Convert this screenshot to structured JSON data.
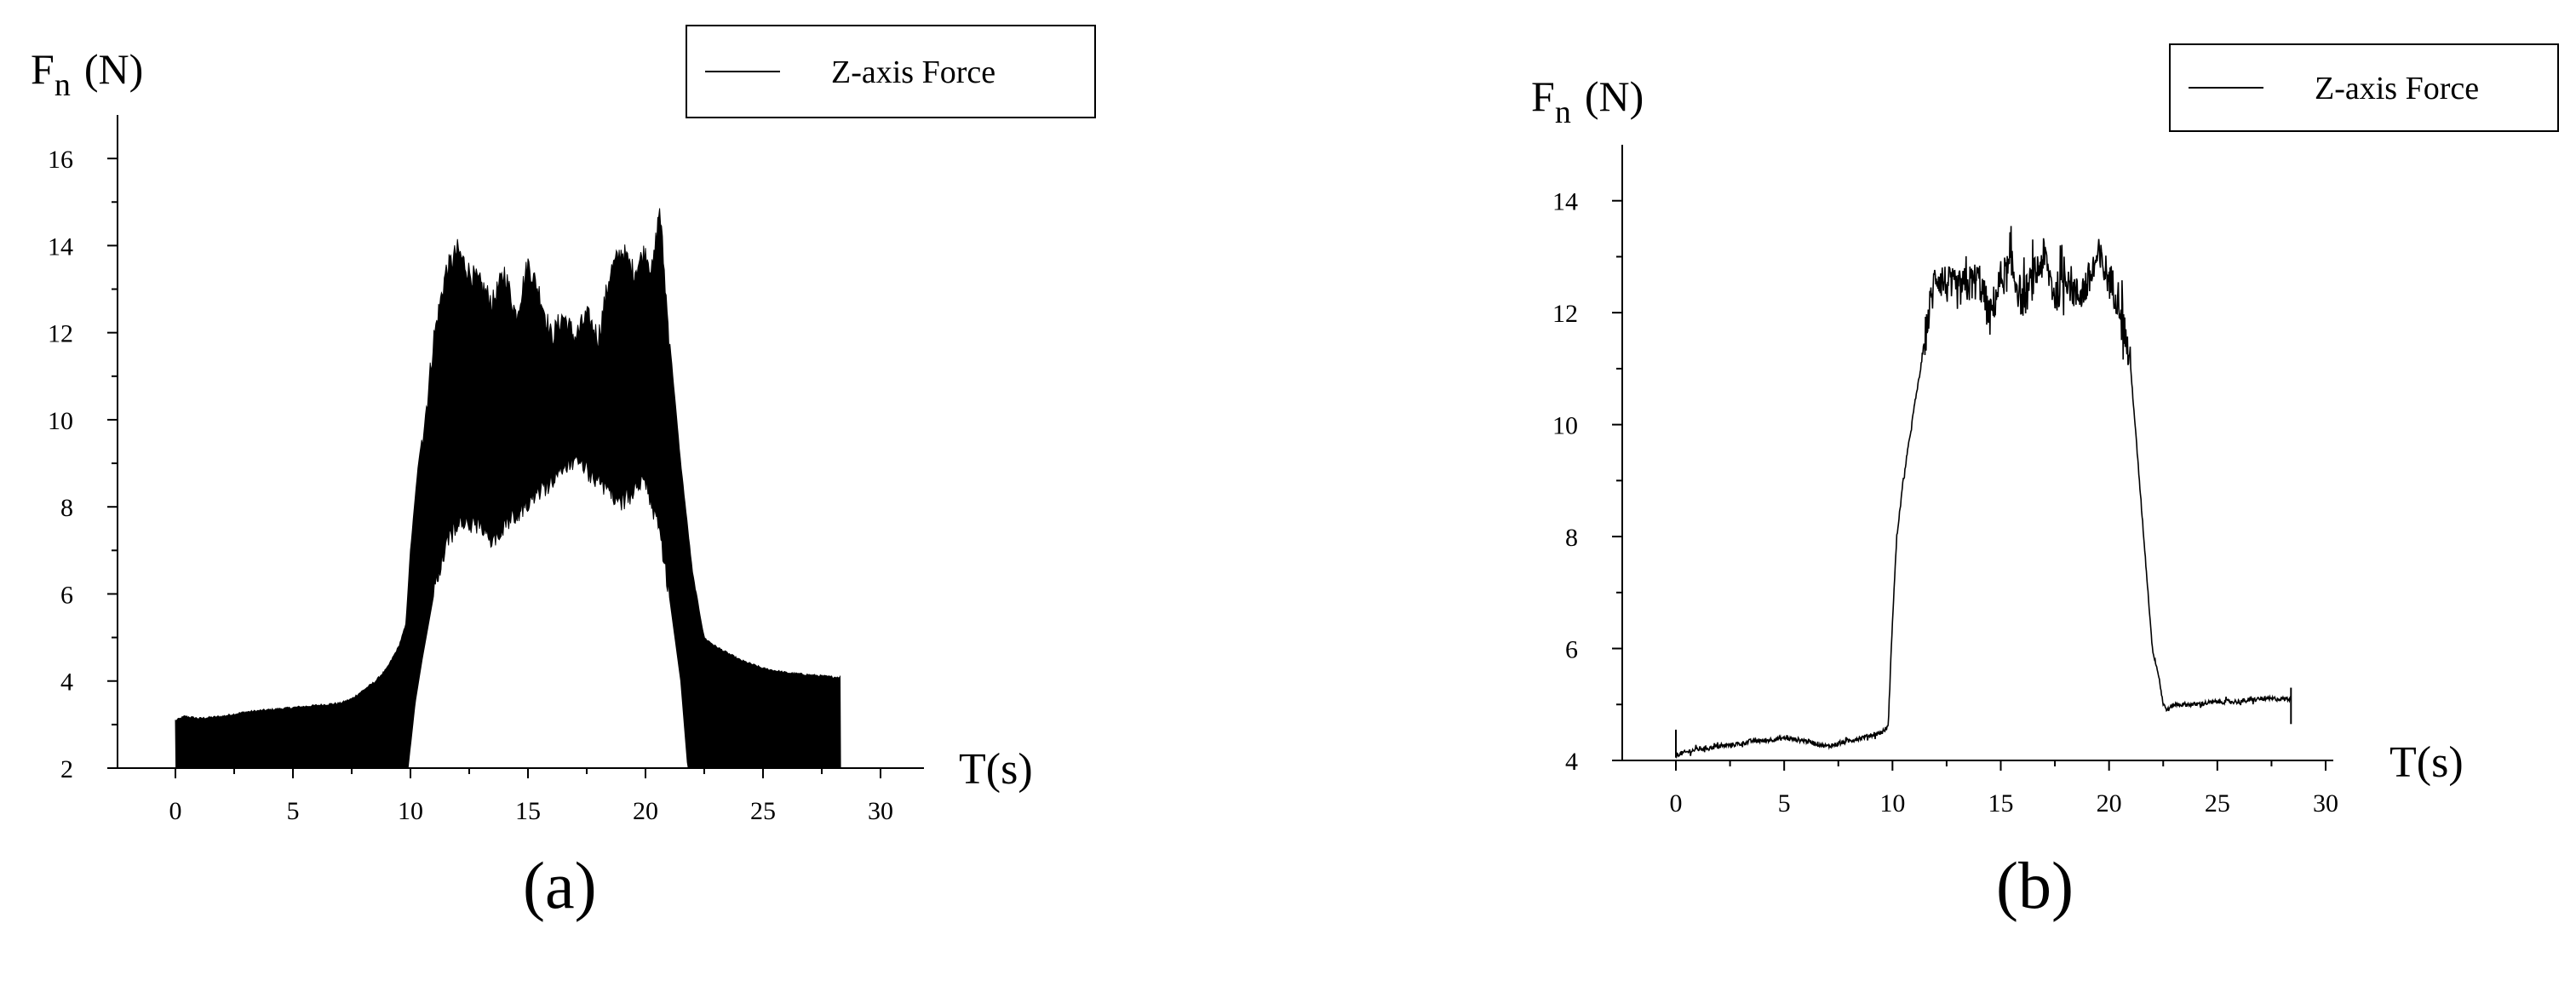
{
  "chart_data": [
    {
      "panel_label": "(a)",
      "type": "line",
      "ylabel_main": "F",
      "ylabel_sub": "n",
      "ylabel_unit": "(N)",
      "xlabel": "T(s)",
      "legend": "Z-axis Force",
      "legend_position": "top-right",
      "xlim": [
        -3,
        32
      ],
      "ylim": [
        2,
        17
      ],
      "xticks": [
        0,
        5,
        10,
        15,
        20,
        25,
        30
      ],
      "yticks": [
        2,
        4,
        6,
        8,
        10,
        12,
        14,
        16
      ],
      "series_color": "#000000",
      "series": [
        {
          "style": "filled-band",
          "upper": [
            [
              0,
              3.1
            ],
            [
              0.4,
              3.2
            ],
            [
              1,
              3.15
            ],
            [
              2,
              3.2
            ],
            [
              3,
              3.3
            ],
            [
              4,
              3.35
            ],
            [
              5,
              3.4
            ],
            [
              6,
              3.45
            ],
            [
              7,
              3.5
            ],
            [
              7.5,
              3.6
            ],
            [
              8,
              3.8
            ],
            [
              8.5,
              4.0
            ],
            [
              9,
              4.3
            ],
            [
              9.5,
              4.8
            ],
            [
              9.8,
              5.3
            ],
            [
              10,
              7
            ],
            [
              10.3,
              8.8
            ],
            [
              10.7,
              10.5
            ],
            [
              11,
              12
            ],
            [
              11.5,
              13.5
            ],
            [
              12,
              14.0
            ],
            [
              12.5,
              13.5
            ],
            [
              13,
              13.2
            ],
            [
              13.5,
              12.8
            ],
            [
              14,
              13.5
            ],
            [
              14.5,
              12.5
            ],
            [
              15,
              13.7
            ],
            [
              15.5,
              13.0
            ],
            [
              16,
              12.0
            ],
            [
              16.5,
              12.5
            ],
            [
              17,
              12.0
            ],
            [
              17.5,
              12.5
            ],
            [
              18,
              12.0
            ],
            [
              18.5,
              13.5
            ],
            [
              19,
              14.0
            ],
            [
              19.5,
              13.5
            ],
            [
              20,
              14.0
            ],
            [
              20.3,
              13.5
            ],
            [
              20.6,
              15.0
            ],
            [
              21,
              12.0
            ],
            [
              21.5,
              9.0
            ],
            [
              22,
              6.5
            ],
            [
              22.5,
              5.0
            ],
            [
              23,
              4.8
            ],
            [
              24,
              4.5
            ],
            [
              25,
              4.3
            ],
            [
              26,
              4.2
            ],
            [
              27,
              4.15
            ],
            [
              28,
              4.1
            ],
            [
              28.3,
              4.1
            ]
          ],
          "lower": [
            [
              0,
              2
            ],
            [
              9.9,
              2
            ],
            [
              10.2,
              3.5
            ],
            [
              10.5,
              4.5
            ],
            [
              11,
              6.0
            ],
            [
              11.5,
              7.0
            ],
            [
              12,
              7.5
            ],
            [
              13,
              7.5
            ],
            [
              13.5,
              7.0
            ],
            [
              14,
              7.5
            ],
            [
              15,
              8.0
            ],
            [
              16,
              8.5
            ],
            [
              17,
              9.0
            ],
            [
              18,
              8.5
            ],
            [
              19,
              8.0
            ],
            [
              20,
              8.5
            ],
            [
              20.5,
              7.5
            ],
            [
              21,
              6.0
            ],
            [
              21.5,
              4.0
            ],
            [
              21.8,
              2
            ],
            [
              28.3,
              2
            ]
          ]
        }
      ]
    },
    {
      "panel_label": "(b)",
      "type": "line",
      "ylabel_main": "F",
      "ylabel_sub": "n",
      "ylabel_unit": "(N)",
      "xlabel": "T(s)",
      "legend": "Z-axis Force",
      "legend_position": "top-right",
      "xlim": [
        -3,
        32
      ],
      "ylim": [
        4,
        15
      ],
      "xticks": [
        0,
        5,
        10,
        15,
        20,
        25,
        30
      ],
      "yticks": [
        4,
        6,
        8,
        10,
        12,
        14
      ],
      "series_color": "#000000",
      "series": [
        {
          "style": "noisy-line",
          "points": [
            [
              0,
              4.1
            ],
            [
              0.5,
              4.15
            ],
            [
              1,
              4.2
            ],
            [
              2,
              4.25
            ],
            [
              3,
              4.3
            ],
            [
              3.5,
              4.35
            ],
            [
              4,
              4.35
            ],
            [
              5,
              4.4
            ],
            [
              6,
              4.35
            ],
            [
              7,
              4.25
            ],
            [
              7.5,
              4.3
            ],
            [
              8,
              4.35
            ],
            [
              8.5,
              4.4
            ],
            [
              9,
              4.45
            ],
            [
              9.5,
              4.5
            ],
            [
              9.8,
              4.6
            ],
            [
              10,
              6.5
            ],
            [
              10.2,
              8.0
            ],
            [
              10.5,
              9.0
            ],
            [
              11,
              10.3
            ],
            [
              11.3,
              11.0
            ],
            [
              11.6,
              11.8
            ],
            [
              12,
              12.7
            ],
            [
              12.5,
              12.5
            ],
            [
              13,
              12.4
            ],
            [
              13.5,
              12.5
            ],
            [
              14,
              12.6
            ],
            [
              14.5,
              11.9
            ],
            [
              15,
              12.6
            ],
            [
              15.5,
              12.8
            ],
            [
              16,
              12.2
            ],
            [
              16.5,
              12.6
            ],
            [
              17,
              13.0
            ],
            [
              17.5,
              12.3
            ],
            [
              18,
              12.7
            ],
            [
              18.5,
              12.3
            ],
            [
              19,
              12.5
            ],
            [
              19.5,
              13.0
            ],
            [
              20,
              12.6
            ],
            [
              20.5,
              12.2
            ],
            [
              21,
              11.0
            ],
            [
              21.5,
              8.5
            ],
            [
              21.8,
              7.0
            ],
            [
              22,
              6.0
            ],
            [
              22.3,
              5.5
            ],
            [
              22.5,
              5.0
            ],
            [
              22.7,
              4.9
            ],
            [
              23,
              5.0
            ],
            [
              24,
              5.0
            ],
            [
              25,
              5.05
            ],
            [
              26,
              5.05
            ],
            [
              27,
              5.1
            ],
            [
              28,
              5.1
            ],
            [
              28.4,
              5.1
            ]
          ],
          "noise_amplitude_plateau": 0.35,
          "noise_amplitude_base": 0.04
        }
      ]
    }
  ]
}
